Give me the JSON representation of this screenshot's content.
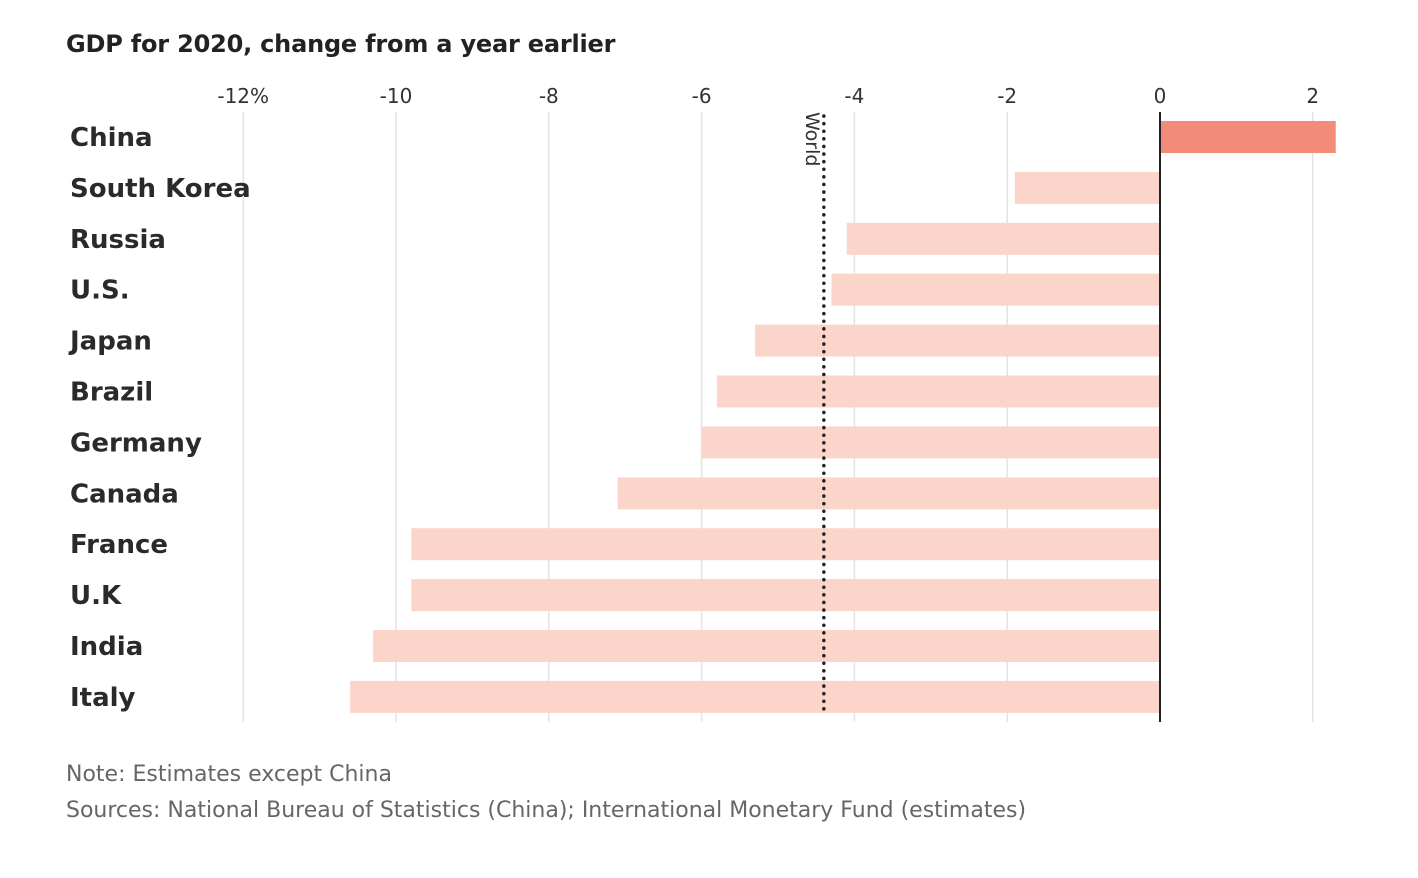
{
  "chart_data": {
    "type": "bar",
    "orientation": "horizontal",
    "title": "GDP for 2020, change from a year earlier",
    "xlabel": "",
    "ylabel": "",
    "xlim": [
      -12,
      2.3
    ],
    "ticks": [
      -12,
      -10,
      -8,
      -6,
      -4,
      -2,
      0,
      2
    ],
    "tick_labels": [
      "-12%",
      "-10",
      "-8",
      "-6",
      "-4",
      "-2",
      "0",
      "2"
    ],
    "categories": [
      "China",
      "South Korea",
      "Russia",
      "U.S.",
      "Japan",
      "Brazil",
      "Germany",
      "Canada",
      "France",
      "U.K",
      "India",
      "Italy"
    ],
    "values": [
      2.3,
      -1.9,
      -4.1,
      -4.3,
      -5.3,
      -5.8,
      -6.0,
      -7.1,
      -9.8,
      -9.8,
      -10.3,
      -10.6
    ],
    "highlight": "China",
    "reference_line": {
      "label": "World",
      "value": -4.4,
      "style": "dotted"
    },
    "grid": true,
    "colors": {
      "highlight_bar": "#f28b78",
      "bar": "#fbd5ca",
      "grid": "#e3e3e3",
      "zero_line": "#222222",
      "reference_line": "#222222"
    }
  },
  "notes": {
    "note": "Note: Estimates except China",
    "sources": "Sources: National Bureau of Statistics (China); International Monetary Fund (estimates)"
  }
}
